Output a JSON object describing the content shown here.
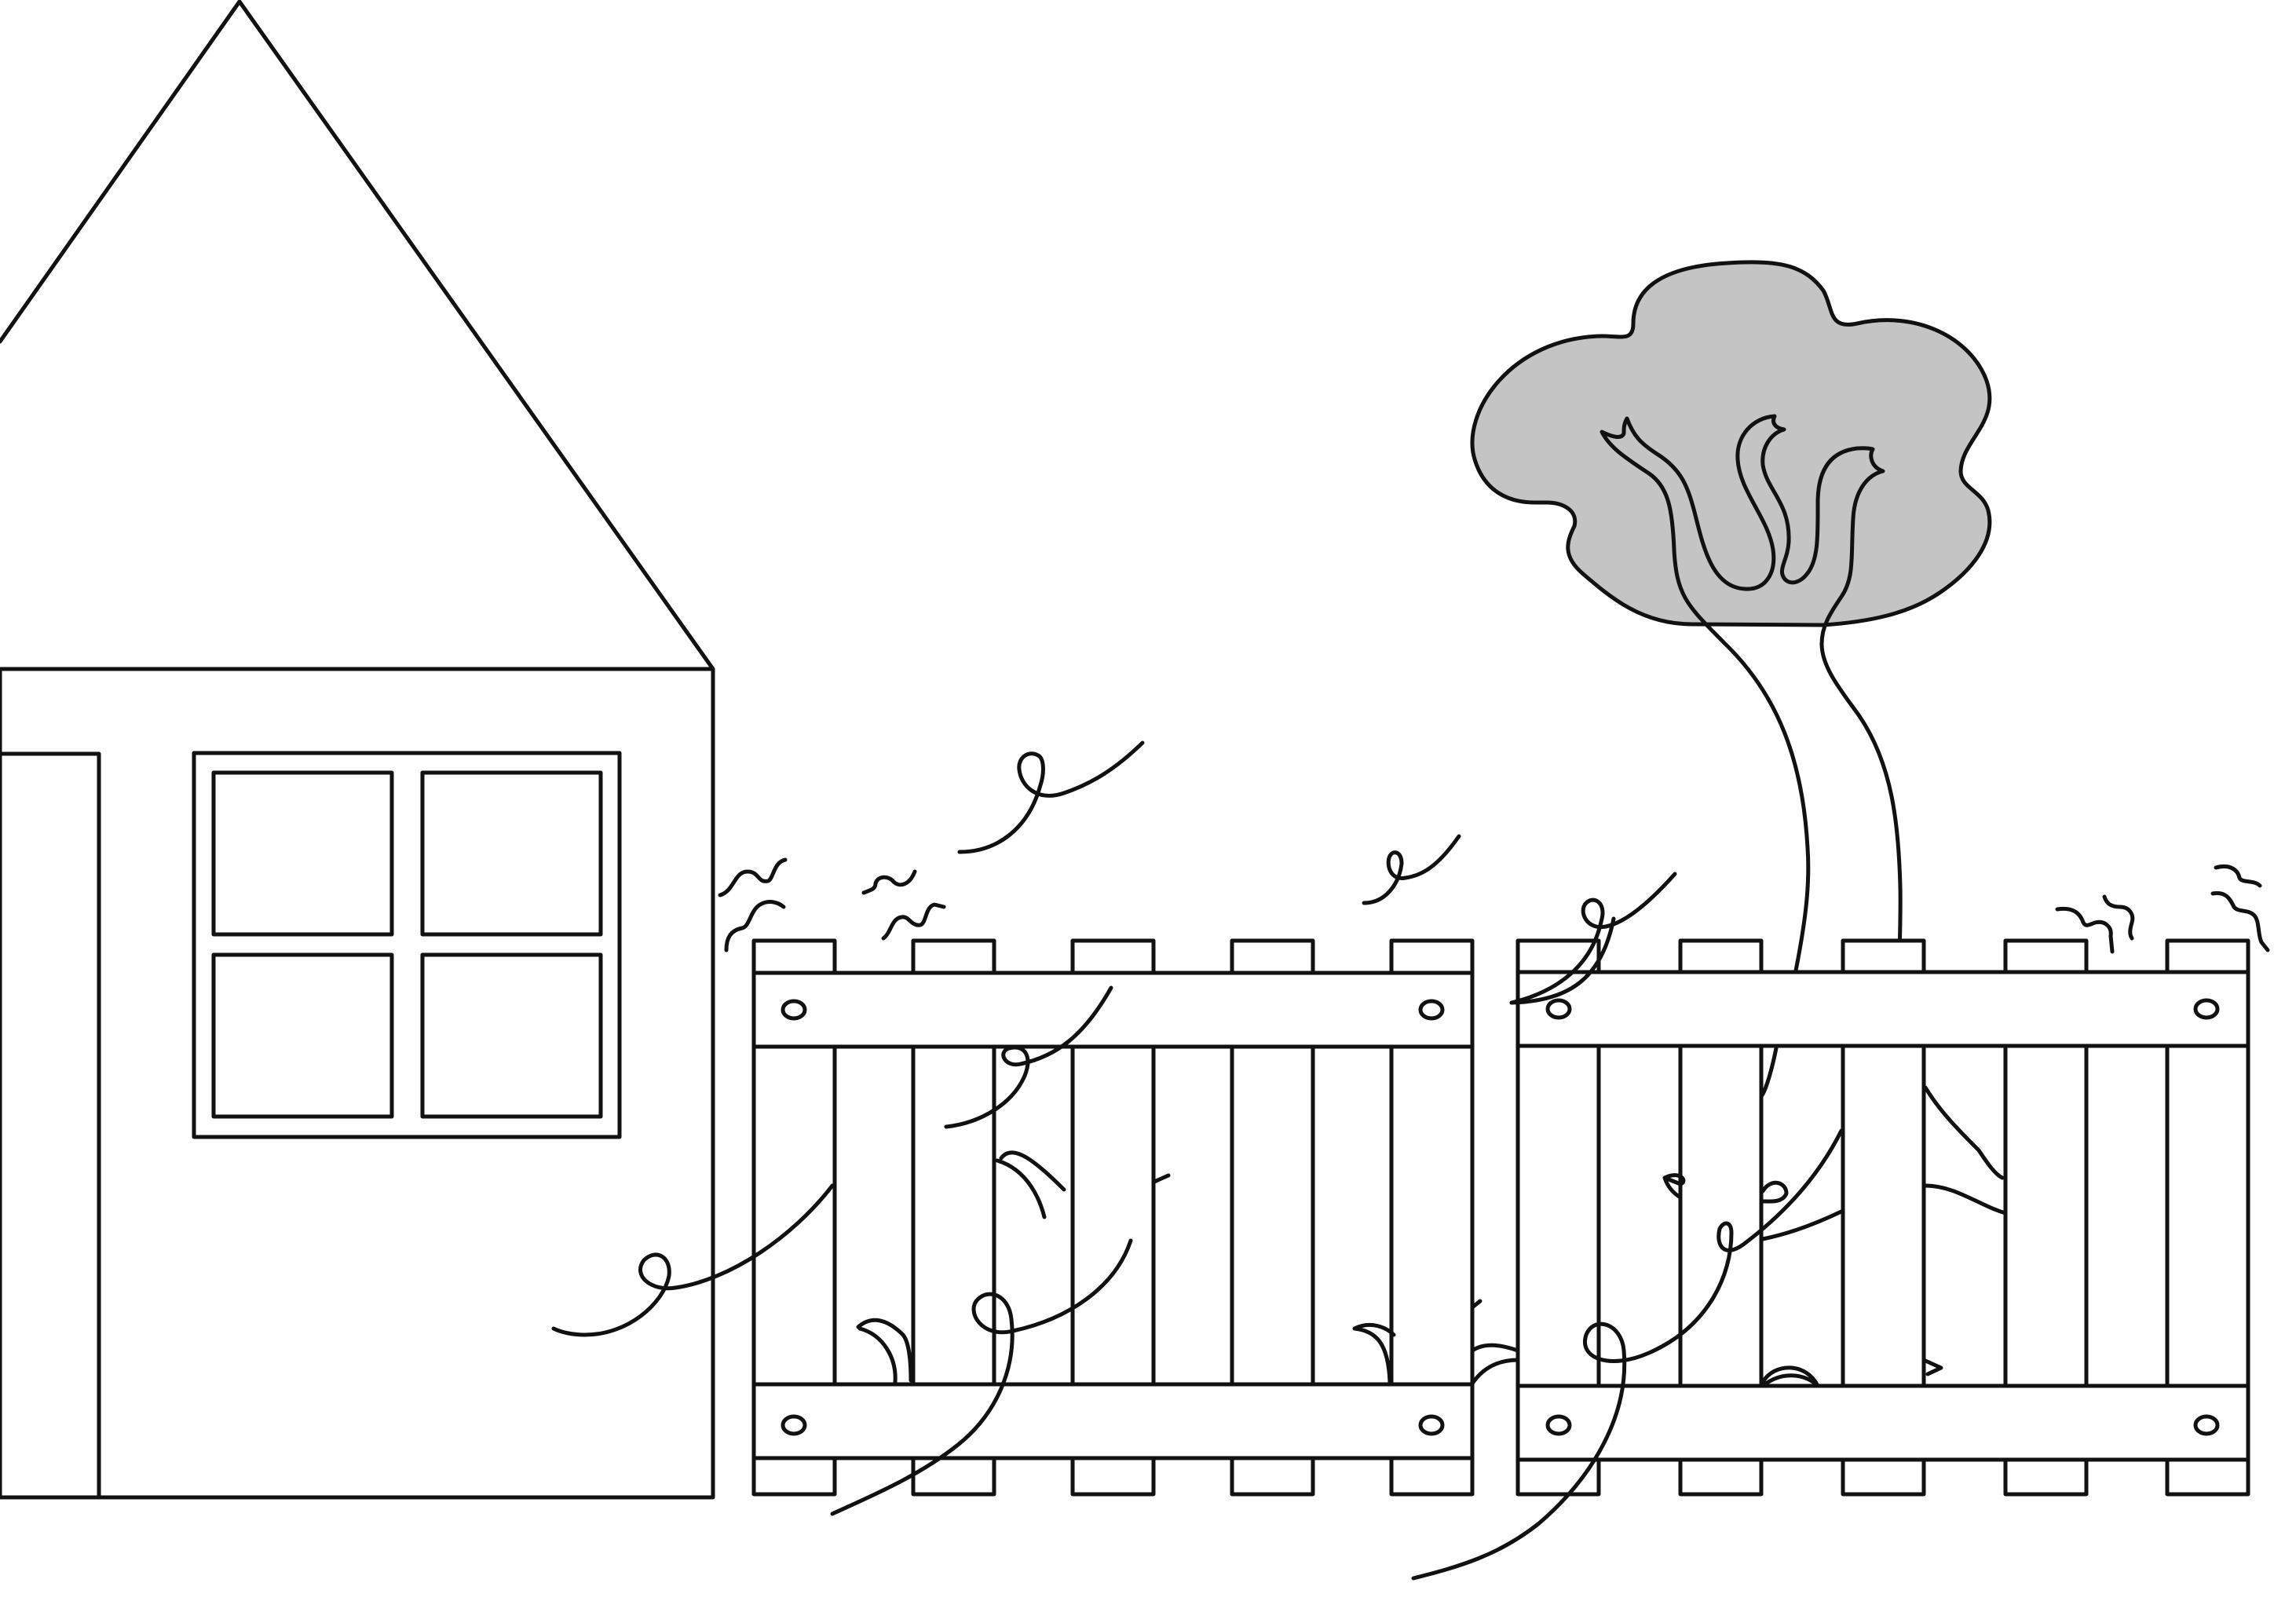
{
  "scene": {
    "background_color": "#ffffff",
    "line_color": "#111111",
    "tree_canopy_color": "#c4c4c4",
    "objects": [
      "house",
      "window",
      "left-fence-panel",
      "right-fence-panel",
      "tree",
      "wind-swirls",
      "vines"
    ]
  }
}
